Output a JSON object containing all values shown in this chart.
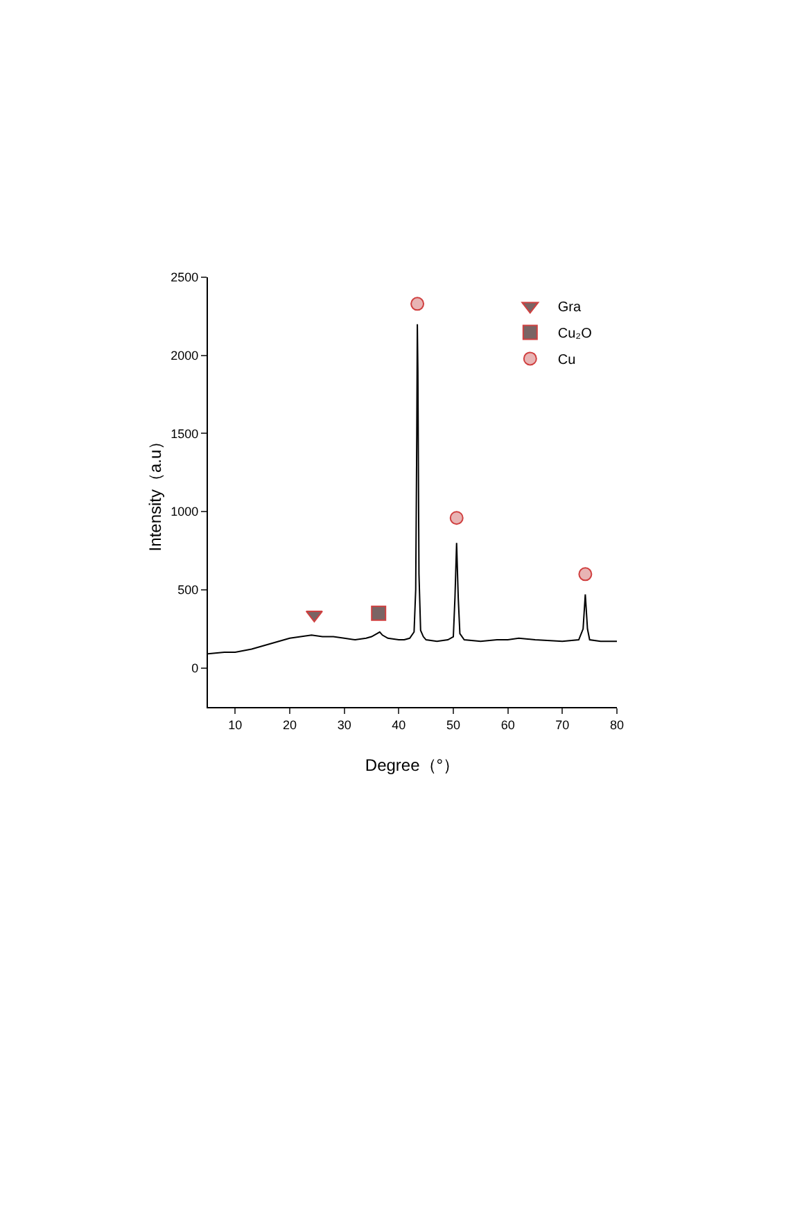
{
  "chart_data": {
    "type": "line",
    "xlabel": "Degree（°）",
    "ylabel": "Intensity（a.u）",
    "xlim": [
      5,
      80
    ],
    "xticks": [
      10,
      20,
      30,
      40,
      50,
      60,
      70,
      80
    ],
    "ylim": [
      -250,
      2500
    ],
    "yticks": [
      0,
      500,
      1000,
      1500,
      2000,
      2500
    ],
    "grid": false,
    "legend": "top right",
    "line_style": "solid",
    "series": [
      {
        "color": "#000000",
        "x": [
          5,
          8,
          10,
          13,
          15,
          18,
          20,
          22,
          24,
          26,
          28,
          30,
          32,
          34,
          35,
          36,
          36.5,
          37,
          38,
          40,
          41,
          42,
          42.8,
          43.1,
          43.3,
          43.4,
          43.5,
          43.7,
          44,
          44.5,
          45,
          47,
          49,
          50,
          50.3,
          50.6,
          50.9,
          51.2,
          52,
          55,
          58,
          60,
          62,
          65,
          70,
          73,
          73.8,
          74.2,
          74.6,
          75,
          77,
          80
        ],
        "values": [
          90,
          100,
          100,
          120,
          140,
          170,
          190,
          200,
          210,
          200,
          200,
          190,
          180,
          190,
          200,
          220,
          230,
          210,
          190,
          180,
          180,
          190,
          230,
          500,
          1500,
          2200,
          1900,
          600,
          240,
          200,
          180,
          170,
          180,
          200,
          450,
          800,
          450,
          220,
          180,
          170,
          180,
          180,
          190,
          180,
          170,
          180,
          250,
          470,
          250,
          180,
          170,
          170
        ]
      },
      {
        "type": "scatter",
        "name": "Gra",
        "marker": "triangle",
        "color": "#7a6464",
        "x": [
          24.5
        ],
        "values": [
          340
        ]
      },
      {
        "type": "scatter",
        "name": "Cu₂O",
        "marker": "square",
        "color": "#7a6464",
        "x": [
          36.3
        ],
        "values": [
          350
        ]
      },
      {
        "type": "scatter",
        "name": "Cu",
        "marker": "circle",
        "color": "#e8b4b4",
        "x": [
          43.4,
          50.6,
          74.2
        ],
        "values": [
          2330,
          960,
          600
        ]
      }
    ]
  }
}
